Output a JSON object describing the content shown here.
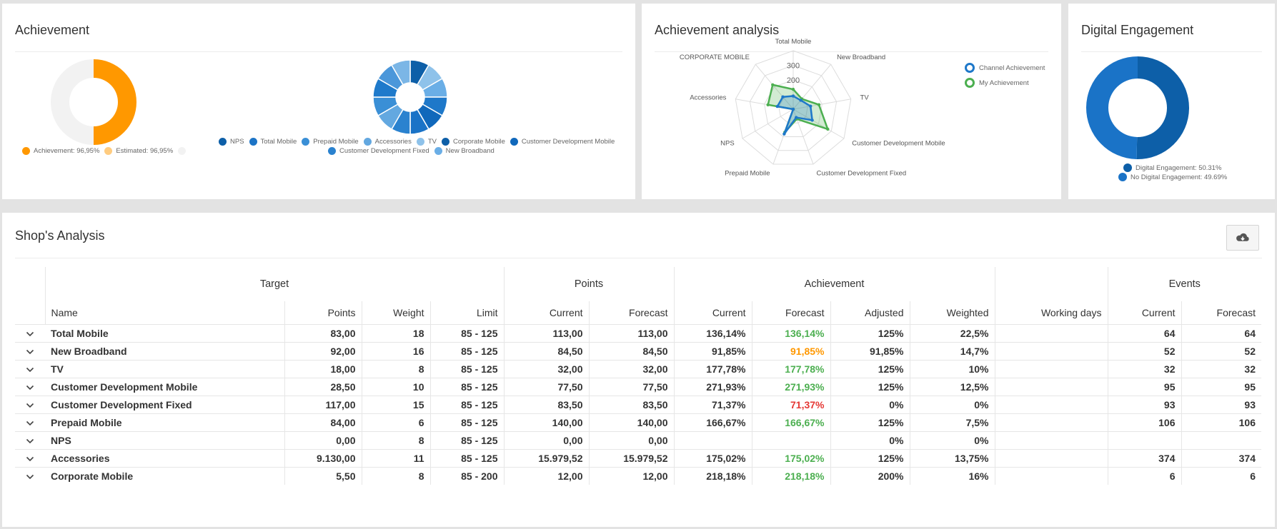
{
  "achievement": {
    "title": "Achievement",
    "donut1": {
      "slices": [
        {
          "label": "Achievement: 96,95%",
          "value": 96.95,
          "color": "#ff9800"
        },
        {
          "label": "Estimated: 96,95%",
          "value": 96.95,
          "color": "#f2f2f2"
        }
      ],
      "legend": [
        {
          "label": "Achievement: 96,95%",
          "color": "#ff9800"
        },
        {
          "label": "Estimated: 96,95%",
          "color": "#ffcc80"
        },
        {
          "label": "",
          "color": "#f2f2f2"
        }
      ]
    },
    "donut2": {
      "slices": [
        {
          "label": "NPS",
          "value": 1,
          "color": "#0d5fa8"
        },
        {
          "label": "Total Mobile",
          "value": 1,
          "color": "#8ec2ea"
        },
        {
          "label": "Prepaid Mobile",
          "value": 1,
          "color": "#6aaee6"
        },
        {
          "label": "Accessories",
          "value": 1,
          "color": "#1e78c9"
        },
        {
          "label": "TV",
          "value": 1,
          "color": "#1068bb"
        },
        {
          "label": "Corporate Mobile",
          "value": 1,
          "color": "#1a73c7"
        },
        {
          "label": "Customer Development Mobile",
          "value": 1,
          "color": "#2a82cf"
        },
        {
          "label": "Customer Development Fixed",
          "value": 1,
          "color": "#63a8e0"
        },
        {
          "label": "New Broadband",
          "value": 1,
          "color": "#3a8fd6"
        },
        {
          "label": "",
          "value": 1,
          "color": "#1f7acb"
        },
        {
          "label": "",
          "value": 1,
          "color": "#4b97da"
        },
        {
          "label": "",
          "value": 1,
          "color": "#7bb6e6"
        }
      ],
      "legend_row1": [
        {
          "label": "NPS",
          "color": "#0d5fa8"
        },
        {
          "label": "Total Mobile",
          "color": "#1c74c6"
        },
        {
          "label": "Prepaid Mobile",
          "color": "#3a8fd6"
        },
        {
          "label": "Accessories",
          "color": "#63a8e0"
        },
        {
          "label": "TV",
          "color": "#8ec2ea"
        },
        {
          "label": "Corporate Mobile",
          "color": "#0d5fa8"
        },
        {
          "label": "Customer Development Mobile",
          "color": "#1068bb"
        }
      ],
      "legend_row2": [
        {
          "label": "Customer Development Fixed",
          "color": "#2a82cf"
        },
        {
          "label": "New Broadband",
          "color": "#6aaee6"
        }
      ]
    }
  },
  "analysis": {
    "title": "Achievement analysis",
    "chart_data": {
      "type": "radar",
      "axes": [
        "Total Mobile",
        "New Broadband",
        "TV",
        "Customer Development Mobile",
        "Customer Development Fixed",
        "Prepaid Mobile",
        "NPS",
        "Accessories",
        "CORPORATE MOBILE"
      ],
      "ticks": [
        "300",
        "200"
      ],
      "range": [
        0,
        400
      ],
      "series": [
        {
          "name": "Channel Achievement",
          "color": "#1e78c9",
          "values": [
            90,
            80,
            120,
            150,
            60,
            180,
            0,
            110,
            110
          ]
        },
        {
          "name": "My Achievement",
          "color": "#4caf50",
          "values": [
            136,
            92,
            178,
            272,
            71,
            167,
            0,
            175,
            218
          ]
        }
      ]
    }
  },
  "digital": {
    "title": "Digital Engagement",
    "slices": [
      {
        "label": "Digital Engagement: 50.31%",
        "value": 50.31,
        "color": "#0d5fa8"
      },
      {
        "label": "No Digital Engagement: 49.69%",
        "value": 49.69,
        "color": "#1a73c7"
      }
    ]
  },
  "shop": {
    "title": "Shop's Analysis",
    "download_icon": "cloud-download-icon",
    "groups": {
      "target": "Target",
      "points": "Points",
      "achievement": "Achievement",
      "events": "Events"
    },
    "columns": {
      "name": "Name",
      "points": "Points",
      "weight": "Weight",
      "limit": "Limit",
      "p_current": "Current",
      "p_forecast": "Forecast",
      "a_current": "Current",
      "a_forecast": "Forecast",
      "adjusted": "Adjusted",
      "weighted": "Weighted",
      "working_days": "Working days",
      "e_current": "Current",
      "e_forecast": "Forecast"
    },
    "rows": [
      {
        "name": "Total Mobile",
        "points": "83,00",
        "weight": "18",
        "limit": "85 - 125",
        "p_current": "113,00",
        "p_forecast": "113,00",
        "a_current": "136,14%",
        "a_forecast": "136,14%",
        "status": "green",
        "adjusted": "125%",
        "weighted": "22,5%",
        "working_days": "",
        "e_current": "64",
        "e_forecast": "64"
      },
      {
        "name": "New Broadband",
        "points": "92,00",
        "weight": "16",
        "limit": "85 - 125",
        "p_current": "84,50",
        "p_forecast": "84,50",
        "a_current": "91,85%",
        "a_forecast": "91,85%",
        "status": "orange",
        "adjusted": "91,85%",
        "weighted": "14,7%",
        "working_days": "",
        "e_current": "52",
        "e_forecast": "52"
      },
      {
        "name": "TV",
        "points": "18,00",
        "weight": "8",
        "limit": "85 - 125",
        "p_current": "32,00",
        "p_forecast": "32,00",
        "a_current": "177,78%",
        "a_forecast": "177,78%",
        "status": "green",
        "adjusted": "125%",
        "weighted": "10%",
        "working_days": "",
        "e_current": "32",
        "e_forecast": "32"
      },
      {
        "name": "Customer Development Mobile",
        "points": "28,50",
        "weight": "10",
        "limit": "85 - 125",
        "p_current": "77,50",
        "p_forecast": "77,50",
        "a_current": "271,93%",
        "a_forecast": "271,93%",
        "status": "green",
        "adjusted": "125%",
        "weighted": "12,5%",
        "working_days": "",
        "e_current": "95",
        "e_forecast": "95"
      },
      {
        "name": "Customer Development Fixed",
        "points": "117,00",
        "weight": "15",
        "limit": "85 - 125",
        "p_current": "83,50",
        "p_forecast": "83,50",
        "a_current": "71,37%",
        "a_forecast": "71,37%",
        "status": "red",
        "adjusted": "0%",
        "weighted": "0%",
        "working_days": "",
        "e_current": "93",
        "e_forecast": "93"
      },
      {
        "name": "Prepaid Mobile",
        "points": "84,00",
        "weight": "6",
        "limit": "85 - 125",
        "p_current": "140,00",
        "p_forecast": "140,00",
        "a_current": "166,67%",
        "a_forecast": "166,67%",
        "status": "green",
        "adjusted": "125%",
        "weighted": "7,5%",
        "working_days": "",
        "e_current": "106",
        "e_forecast": "106"
      },
      {
        "name": "NPS",
        "points": "0,00",
        "weight": "8",
        "limit": "85 - 125",
        "p_current": "0,00",
        "p_forecast": "0,00",
        "a_current": "",
        "a_forecast": "",
        "status": "",
        "adjusted": "0%",
        "weighted": "0%",
        "working_days": "",
        "e_current": "",
        "e_forecast": ""
      },
      {
        "name": "Accessories",
        "points": "9.130,00",
        "weight": "11",
        "limit": "85 - 125",
        "p_current": "15.979,52",
        "p_forecast": "15.979,52",
        "a_current": "175,02%",
        "a_forecast": "175,02%",
        "status": "green",
        "adjusted": "125%",
        "weighted": "13,75%",
        "working_days": "",
        "e_current": "374",
        "e_forecast": "374"
      },
      {
        "name": "Corporate Mobile",
        "points": "5,50",
        "weight": "8",
        "limit": "85 - 200",
        "p_current": "12,00",
        "p_forecast": "12,00",
        "a_current": "218,18%",
        "a_forecast": "218,18%",
        "status": "green",
        "adjusted": "200%",
        "weighted": "16%",
        "working_days": "",
        "e_current": "6",
        "e_forecast": "6"
      }
    ]
  }
}
